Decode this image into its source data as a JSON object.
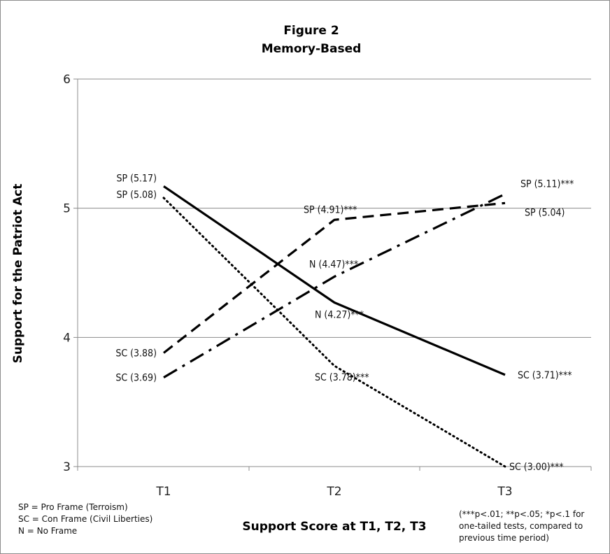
{
  "chart_data": {
    "type": "line",
    "title": "Figure 2",
    "subtitle": "Memory-Based",
    "xlabel": "Support Score at T1, T2, T3",
    "ylabel": "Support for the Patriot Act",
    "categories": [
      "T1",
      "T2",
      "T3"
    ],
    "ylim": [
      3,
      6
    ],
    "yticks": [
      "3",
      "4",
      "5",
      "6"
    ],
    "grid": true,
    "series": [
      {
        "style": "solid",
        "values": [
          5.17,
          4.27,
          3.71
        ],
        "labels": [
          "SP (5.17)",
          "N (4.27)***",
          "SC (3.71)***"
        ]
      },
      {
        "style": "dotted",
        "values": [
          5.08,
          3.78,
          3.0
        ],
        "labels": [
          "SP (5.08)",
          "SC (3.78)***",
          "SC (3.00)***"
        ]
      },
      {
        "style": "dashed",
        "values": [
          3.88,
          4.91,
          5.04
        ],
        "labels": [
          "SC (3.88)",
          "SP (4.91)***",
          "SP (5.04)"
        ]
      },
      {
        "style": "dash-dot",
        "values": [
          3.69,
          4.47,
          5.11
        ],
        "labels": [
          "SC (3.69)",
          "N (4.47)***",
          "SP (5.11)***"
        ]
      }
    ],
    "legend_notes": [
      "SP = Pro  Frame (Terroism)",
      "SC = Con  Frame (Civil Liberties)",
      "N = No Frame"
    ],
    "footnote": [
      "(***p<.01; **p<.05; *p<.1 for",
      "one-tailed tests, compared to",
      "previous time period)"
    ]
  }
}
